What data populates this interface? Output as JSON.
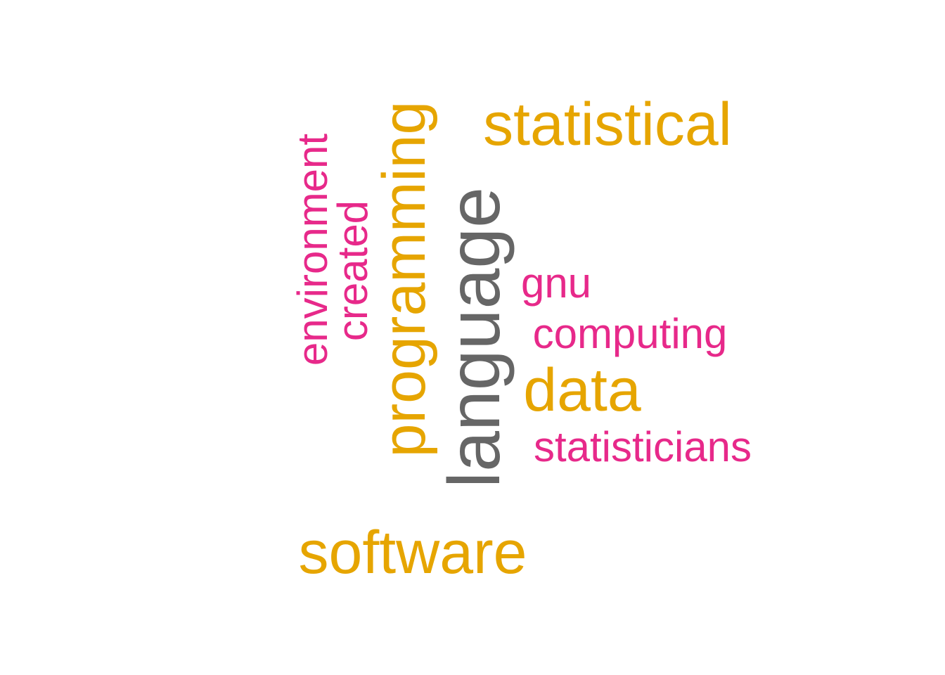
{
  "word_cloud": {
    "words": [
      {
        "id": "language",
        "text": "language",
        "color": "#666666",
        "freq_rank": 1
      },
      {
        "id": "programming",
        "text": "programming",
        "color": "#E6A500",
        "freq_rank": 2
      },
      {
        "id": "statistical",
        "text": "statistical",
        "color": "#E6A500",
        "freq_rank": 2
      },
      {
        "id": "software",
        "text": "software",
        "color": "#E6A500",
        "freq_rank": 2
      },
      {
        "id": "data",
        "text": "data",
        "color": "#E6A500",
        "freq_rank": 2
      },
      {
        "id": "environment",
        "text": "environment",
        "color": "#E7298A",
        "freq_rank": 3
      },
      {
        "id": "created",
        "text": "created",
        "color": "#E7298A",
        "freq_rank": 3
      },
      {
        "id": "gnu",
        "text": "gnu",
        "color": "#E7298A",
        "freq_rank": 3
      },
      {
        "id": "computing",
        "text": "computing",
        "color": "#E7298A",
        "freq_rank": 3
      },
      {
        "id": "statisticians",
        "text": "statisticians",
        "color": "#E7298A",
        "freq_rank": 3
      }
    ]
  }
}
